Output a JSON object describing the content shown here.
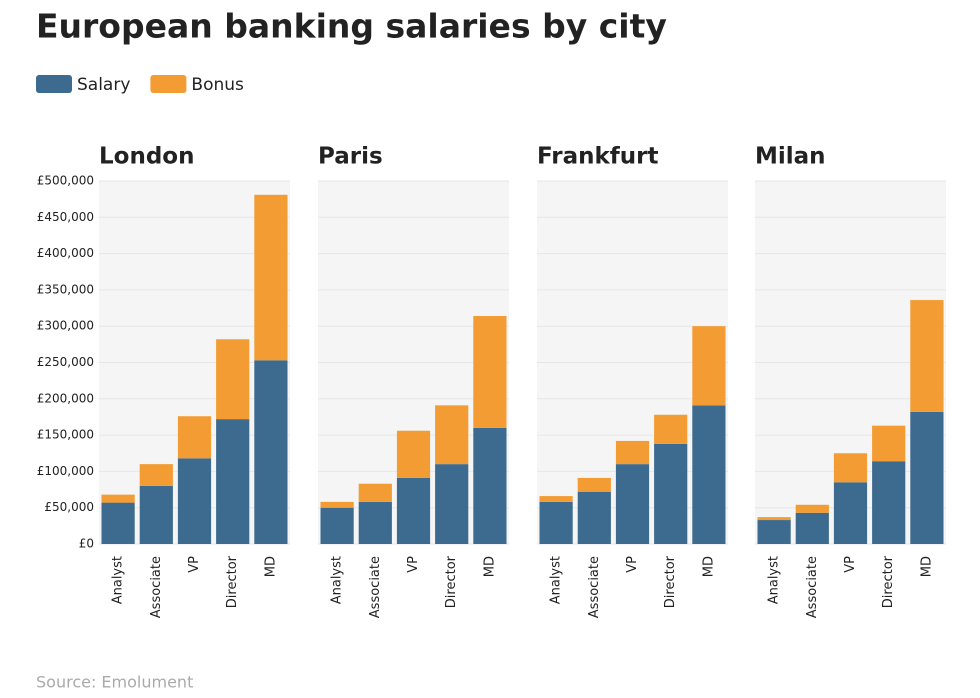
{
  "title": "European banking salaries by city",
  "source": "Source: Emolument",
  "chart_data": [
    {
      "type": "bar",
      "stacked": true,
      "title": "London",
      "categories": [
        "Analyst",
        "Associate",
        "VP",
        "Director",
        "MD"
      ],
      "series": [
        {
          "name": "Salary",
          "color": "#3d6a8f",
          "values": [
            57000,
            80000,
            118000,
            172000,
            253000
          ]
        },
        {
          "name": "Bonus",
          "color": "#f29c33",
          "values": [
            11000,
            30000,
            58000,
            110000,
            228000
          ]
        }
      ],
      "ylim": [
        0,
        500000
      ],
      "yticks": [
        {
          "value": 0,
          "label": "£0"
        },
        {
          "value": 50000,
          "label": "£50,000"
        },
        {
          "value": 100000,
          "label": "£100,000"
        },
        {
          "value": 150000,
          "label": "£150,000"
        },
        {
          "value": 200000,
          "label": "£200,000"
        },
        {
          "value": 250000,
          "label": "£250,000"
        },
        {
          "value": 300000,
          "label": "£300,000"
        },
        {
          "value": 350000,
          "label": "£350,000"
        },
        {
          "value": 400000,
          "label": "£400,000"
        },
        {
          "value": 450000,
          "label": "£450,000"
        },
        {
          "value": 500000,
          "label": "£500,000"
        }
      ],
      "grid": true
    },
    {
      "type": "bar",
      "stacked": true,
      "title": "Paris",
      "categories": [
        "Analyst",
        "Associate",
        "VP",
        "Director",
        "MD"
      ],
      "series": [
        {
          "color": "#3d6a8f",
          "values": [
            50000,
            58000,
            91000,
            110000,
            160000
          ]
        },
        {
          "color": "#f29c33",
          "values": [
            8000,
            25000,
            65000,
            81000,
            154000
          ]
        }
      ],
      "ylim": [
        0,
        500000
      ],
      "yticks": [
        0,
        50000,
        100000,
        150000,
        200000,
        250000,
        300000,
        350000,
        400000,
        450000,
        500000
      ],
      "grid": true
    },
    {
      "type": "bar",
      "stacked": true,
      "title": "Frankfurt",
      "categories": [
        "Analyst",
        "Associate",
        "VP",
        "Director",
        "MD"
      ],
      "series": [
        {
          "color": "#3d6a8f",
          "values": [
            58000,
            72000,
            110000,
            138000,
            191000
          ]
        },
        {
          "color": "#f29c33",
          "values": [
            8000,
            19000,
            32000,
            40000,
            109000
          ]
        }
      ],
      "ylim": [
        0,
        500000
      ],
      "yticks": [
        0,
        50000,
        100000,
        150000,
        200000,
        250000,
        300000,
        350000,
        400000,
        450000,
        500000
      ],
      "grid": true
    },
    {
      "type": "bar",
      "stacked": true,
      "title": "Milan",
      "categories": [
        "Analyst",
        "Associate",
        "VP",
        "Director",
        "MD"
      ],
      "series": [
        {
          "color": "#3d6a8f",
          "values": [
            33000,
            43000,
            85000,
            114000,
            182000
          ]
        },
        {
          "color": "#f29c33",
          "values": [
            4000,
            11000,
            40000,
            49000,
            154000
          ]
        }
      ],
      "ylim": [
        0,
        500000
      ],
      "yticks": [
        0,
        50000,
        100000,
        150000,
        200000,
        250000,
        300000,
        350000,
        400000,
        450000,
        500000
      ],
      "grid": true
    }
  ]
}
